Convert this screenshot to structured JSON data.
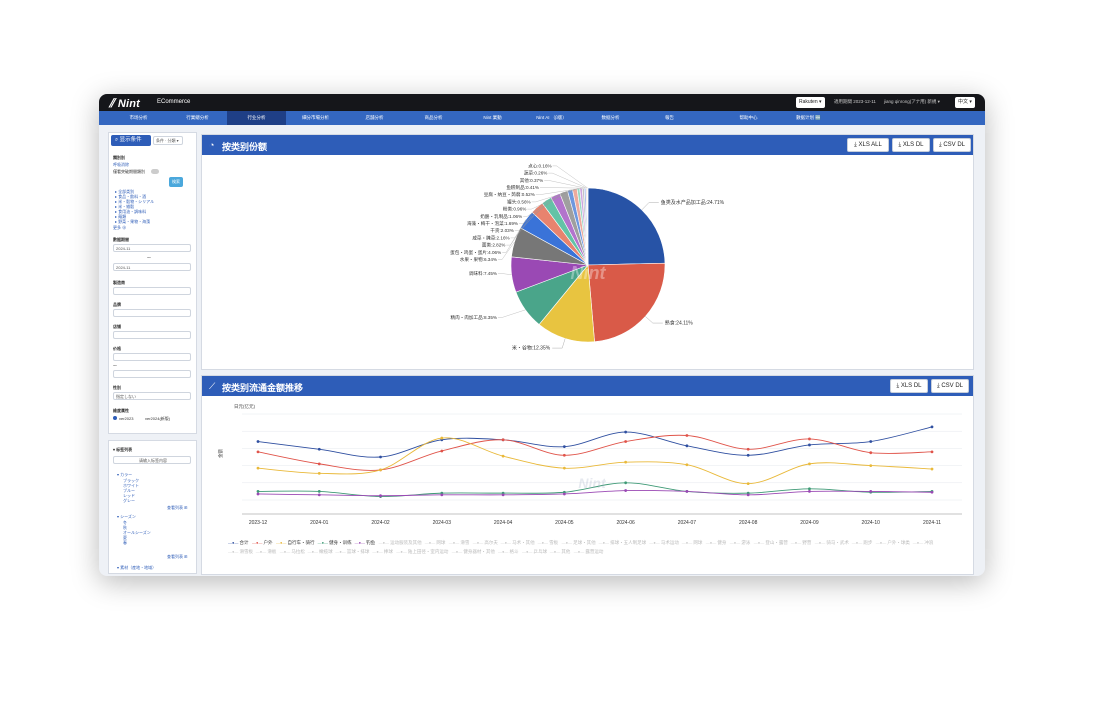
{
  "header": {
    "logo": "Nint",
    "logo_sub": "ECommerce",
    "platform_select": "Rakuten ▾",
    "period_text": "適用期間 2023-12-11",
    "user_text": "jiang qinrong(アナ用) 新規 ▾",
    "lang_select": "中文 ▾"
  },
  "nav": {
    "items": [
      "市场分析",
      "行業總分析",
      "行业分析",
      "細分市場分析",
      "店舗分析",
      "商品分析",
      "Nint 業動",
      "Nint AI （β版）",
      "数据分析",
      "報告",
      "帮助中心",
      "數据计划 🆕"
    ],
    "active_index": 2
  },
  "sidebar": {
    "panel_title": "显示条件",
    "view_select": "条件 · 分類 ▾",
    "category_label": "類別别",
    "category_value": "呼吸消除",
    "toggle_label": "僅看突破期間類別",
    "search_button": "検索",
    "tree": [
      "▸ 全部类别",
      "▸ 食品・飲料・酒",
      "▸ 米・穀物・シリアル",
      "▸ 米・雑穀",
      "▸ 食用油・調味料",
      "▸ 麺類",
      "▸ 野菜・果物・海藻"
    ],
    "more_link": "更多 ⊕",
    "period_label": "數据期間",
    "date_from": "2024-11",
    "date_sep": "〜",
    "date_to": "2024-11",
    "brand_label": "製造商",
    "store_label": "品牌",
    "shop_label": "店铺",
    "price_label": "价格",
    "price_sep": "〜",
    "gender_label": "性别",
    "gender_value": "指定しない",
    "version_label": "維度属性",
    "version_a": "ver2023",
    "version_b": "ver2024(新版)",
    "filter_title": "▾ 标签列表",
    "filter_input": "请输入标签内容",
    "color_label": "▾ カラー",
    "colors": [
      "ブラック",
      "ホワイト",
      "ブルー",
      "レッド",
      "グレー"
    ],
    "more_filter": "查看列表 ⊞",
    "season_label": "▾ シーズン",
    "seasons": [
      "冬",
      "秋",
      "オールシーズン",
      "夏",
      "春"
    ],
    "more_filter2": "查看列表 ⊞",
    "bottom_label": "▾ 素材（産地・地域）"
  },
  "share_card": {
    "title": "按类别份额",
    "buttons": [
      "XLS ALL",
      "XLS DL",
      "CSV DL"
    ],
    "watermark": "Nint"
  },
  "trend_card": {
    "title": "按类别流通金额推移",
    "buttons": [
      "XLS DL",
      "CSV DL"
    ],
    "y_unit": "日元(亿元)",
    "y_axis_label": "金额",
    "watermark": "Nint"
  },
  "legend": {
    "active": [
      "合计",
      "户外",
      "自行车・骑行",
      "健身・训练",
      "钓鱼"
    ],
    "inactive": [
      "运动服装及其他",
      "网球",
      "滑雪",
      "高尔夫",
      "马术・其他",
      "雪板",
      "足球・其他",
      "排球・五人制足球",
      "马术运动",
      "网球",
      "健身",
      "游泳",
      "登山・露营",
      "野营",
      "骑马・武术",
      "跑步",
      "户外・球类",
      "冲浪",
      "滑雪板",
      "滑板",
      "马拉松",
      "橄榄球",
      "篮球・排球",
      "棒球",
      "陆上田径・室内运动",
      "健身器材・其他",
      "格斗",
      "乒乓球",
      "其他",
      "露营运动"
    ]
  },
  "chart_data": [
    {
      "type": "pie",
      "title": "按类别份额",
      "slices": [
        {
          "label": "鱼类及水产品加工品",
          "value": 24.71,
          "color": "#2753a6"
        },
        {
          "label": "熟食",
          "value": 24.11,
          "color": "#d95a48"
        },
        {
          "label": "米・谷物",
          "value": 12.35,
          "color": "#e8c440"
        },
        {
          "label": "精肉・肉加工品",
          "value": 8.35,
          "color": "#4aa58a"
        },
        {
          "label": "调味料",
          "value": 7.45,
          "color": "#9a49b4"
        },
        {
          "label": "水果・果物",
          "value": 6.34,
          "color": "#777777"
        },
        {
          "label": "蛋包・鸡蛋・蛋片",
          "value": 4.06,
          "color": "#3a73d8"
        },
        {
          "label": "面类",
          "value": 2.82,
          "color": "#e8836e"
        },
        {
          "label": "咸菜・腌菜",
          "value": 2.16,
          "color": "#63c3a6"
        },
        {
          "label": "干货",
          "value": 2.03,
          "color": "#b274cc"
        },
        {
          "label": "海藻・梅干・泡菜",
          "value": 1.69,
          "color": "#9f9f9f"
        },
        {
          "label": "奶酪・乳制品",
          "value": 1.06,
          "color": "#6e97de"
        },
        {
          "label": "粉类",
          "value": 0.96,
          "color": "#edaa9d"
        },
        {
          "label": "罐头",
          "value": 0.56,
          "color": "#98d7c3"
        },
        {
          "label": "豆腐・纳豆・蒟蒻",
          "value": 0.52,
          "color": "#cfa6df"
        },
        {
          "label": "鱼糕制品",
          "value": 0.41,
          "color": "#c4c4c4"
        },
        {
          "label": "其他",
          "value": 0.37,
          "color": "#a9c1ec"
        },
        {
          "label": "蔬菜",
          "value": 0.26,
          "color": "#f4d7cf"
        },
        {
          "label": "点心",
          "value": 0.16,
          "color": "#cdeee3"
        }
      ]
    },
    {
      "type": "line",
      "title": "按类别流通金额推移",
      "x": [
        "2023-12",
        "2024-01",
        "2024-02",
        "2024-03",
        "2024-04",
        "2024-05",
        "2024-06",
        "2024-07",
        "2024-08",
        "2024-09",
        "2024-10",
        "2024-11"
      ],
      "ylim": [
        0,
        100
      ],
      "series": [
        {
          "name": "合计",
          "color": "#2f4fa0",
          "values": [
            68,
            59,
            50,
            70,
            70,
            62,
            79,
            63,
            52,
            64,
            68,
            85
          ]
        },
        {
          "name": "户外",
          "color": "#e0544a",
          "values": [
            56,
            42,
            35,
            57,
            70,
            52,
            68,
            75,
            59,
            71,
            55,
            56
          ]
        },
        {
          "name": "自行车・骑行",
          "color": "#e9b93a",
          "values": [
            37,
            31,
            35,
            72,
            51,
            37,
            44,
            41,
            19,
            42,
            40,
            36
          ]
        },
        {
          "name": "健身・训练",
          "color": "#3f9a76",
          "values": [
            10,
            10,
            4,
            8,
            8,
            9,
            20,
            10,
            8,
            13,
            9,
            10
          ]
        },
        {
          "name": "钓鱼",
          "color": "#9a49b4",
          "values": [
            7,
            6,
            5,
            6,
            6,
            7,
            11,
            10,
            6,
            10,
            10,
            9
          ]
        }
      ]
    }
  ]
}
